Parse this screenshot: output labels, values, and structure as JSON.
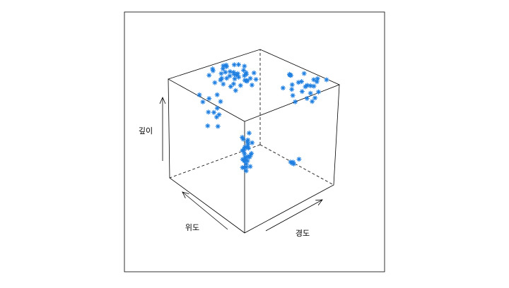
{
  "chart_data": {
    "type": "scatter3d",
    "xlabel": "경도",
    "ylabel": "위도",
    "zlabel": "깊이",
    "series": [
      {
        "color": "#1e7fe0",
        "x": [
          0.4,
          0.45,
          0.5,
          0.55,
          0.6,
          0.65,
          0.7,
          0.42,
          0.48,
          0.52,
          0.58,
          0.62,
          0.68,
          0.72,
          0.38,
          0.44,
          0.56,
          0.64,
          0.66,
          0.54,
          0.46,
          0.5,
          0.6,
          0.7,
          0.74,
          0.36,
          0.52,
          0.58,
          0.62,
          0.48,
          0.55,
          0.65,
          0.45,
          0.68,
          0.57,
          0.63,
          0.51,
          0.59,
          0.43,
          0.71,
          0.58,
          0.6,
          0.62,
          0.59,
          0.61,
          0.63,
          0.57,
          0.6,
          0.62,
          0.64,
          0.58,
          0.61,
          0.59,
          0.63,
          0.6,
          0.62,
          0.56,
          0.6,
          0.64,
          0.61,
          0.59,
          0.62,
          0.58,
          0.6,
          0.63,
          0.61,
          0.57,
          0.62,
          0.6,
          0.59,
          0.9,
          0.95,
          1.0,
          0.92,
          0.98,
          0.88,
          0.96,
          0.94,
          0.99,
          0.91,
          0.97,
          0.93,
          0.89,
          1.0,
          0.95,
          0.92,
          0.98,
          0.9,
          0.96,
          0.94,
          0.87,
          0.99,
          0.93,
          0.97,
          0.91,
          0.3,
          0.35,
          0.4,
          0.45,
          0.5,
          0.32,
          0.38,
          0.42,
          0.48,
          0.34,
          0.44,
          0.36,
          0.88,
          0.9,
          0.92,
          0.94,
          0.86
        ],
        "y": [
          0.8,
          0.85,
          0.75,
          0.9,
          0.7,
          0.8,
          0.85,
          0.92,
          0.7,
          0.88,
          0.78,
          0.72,
          0.9,
          0.75,
          0.85,
          0.95,
          0.82,
          0.68,
          0.78,
          0.93,
          0.74,
          0.8,
          0.86,
          0.7,
          0.82,
          0.9,
          0.76,
          0.94,
          0.84,
          0.88,
          0.72,
          0.92,
          0.78,
          0.8,
          0.88,
          0.76,
          0.9,
          0.82,
          0.8,
          0.86,
          0.7,
          0.72,
          0.68,
          0.74,
          0.7,
          0.66,
          0.72,
          0.7,
          0.74,
          0.68,
          0.71,
          0.69,
          0.73,
          0.7,
          0.75,
          0.67,
          0.7,
          0.72,
          0.69,
          0.71,
          0.66,
          0.73,
          0.7,
          0.68,
          0.72,
          0.74,
          0.69,
          0.71,
          0.7,
          0.67,
          0.2,
          0.3,
          0.4,
          0.5,
          0.25,
          0.45,
          0.35,
          0.55,
          0.15,
          0.6,
          0.22,
          0.38,
          0.48,
          0.28,
          0.52,
          0.33,
          0.42,
          0.18,
          0.58,
          0.26,
          0.36,
          0.46,
          0.24,
          0.32,
          0.44,
          0.85,
          0.9,
          0.95,
          0.88,
          0.92,
          0.98,
          0.82,
          0.86,
          0.94,
          0.96,
          0.9,
          0.84,
          0.4,
          0.45,
          0.38,
          0.48,
          0.42
        ],
        "z": [
          0.95,
          0.98,
          0.9,
          1.0,
          0.92,
          0.97,
          0.88,
          0.99,
          0.86,
          0.96,
          0.93,
          0.9,
          0.98,
          0.94,
          0.91,
          0.99,
          0.97,
          0.87,
          0.95,
          1.0,
          0.89,
          0.96,
          0.92,
          0.9,
          0.85,
          0.97,
          0.94,
          0.99,
          0.93,
          0.91,
          0.88,
          0.98,
          0.96,
          0.92,
          0.95,
          0.89,
          0.99,
          0.93,
          0.9,
          0.97,
          0.05,
          0.1,
          0.15,
          0.2,
          0.25,
          0.3,
          0.35,
          0.08,
          0.12,
          0.18,
          0.22,
          0.28,
          0.32,
          0.38,
          0.02,
          0.06,
          0.14,
          0.24,
          0.16,
          0.04,
          0.26,
          0.11,
          0.19,
          0.33,
          0.09,
          0.21,
          0.13,
          0.29,
          0.01,
          0.17,
          0.95,
          0.9,
          0.85,
          0.8,
          0.98,
          0.88,
          0.75,
          0.92,
          1.0,
          0.78,
          0.86,
          0.82,
          0.96,
          0.93,
          0.72,
          0.89,
          0.97,
          0.84,
          0.91,
          0.76,
          0.94,
          0.87,
          0.99,
          0.81,
          0.7,
          0.5,
          0.6,
          0.7,
          0.55,
          0.65,
          0.75,
          0.8,
          0.45,
          0.58,
          0.68,
          0.52,
          0.62,
          0.1,
          0.08,
          0.14,
          0.06,
          0.12
        ]
      }
    ]
  }
}
